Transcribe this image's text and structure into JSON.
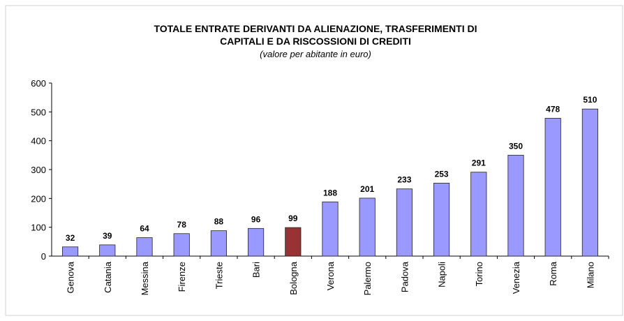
{
  "chart_data": {
    "type": "bar",
    "title": [
      "TOTALE ENTRATE DERIVANTI DA ALIENAZIONE, TRASFERIMENTI DI",
      "CAPITALI E DA RISCOSSIONI DI CREDITI"
    ],
    "subtitle": "(valore per abitante in euro)",
    "categories": [
      "Genova",
      "Catania",
      "Messina",
      "Firenze",
      "Trieste",
      "Bari",
      "Bologna",
      "Verona",
      "Palermo",
      "Padova",
      "Napoli",
      "Torino",
      "Venezia",
      "Roma",
      "Milano"
    ],
    "values": [
      32,
      39,
      64,
      78,
      88,
      96,
      99,
      188,
      201,
      233,
      253,
      291,
      350,
      478,
      510
    ],
    "colors": [
      "#9999ff",
      "#9999ff",
      "#9999ff",
      "#9999ff",
      "#9999ff",
      "#9999ff",
      "#993333",
      "#9999ff",
      "#9999ff",
      "#9999ff",
      "#9999ff",
      "#9999ff",
      "#9999ff",
      "#9999ff",
      "#9999ff"
    ],
    "ylim": [
      0,
      600
    ],
    "yticks": [
      0,
      100,
      200,
      300,
      400,
      500,
      600
    ],
    "grid": false
  }
}
